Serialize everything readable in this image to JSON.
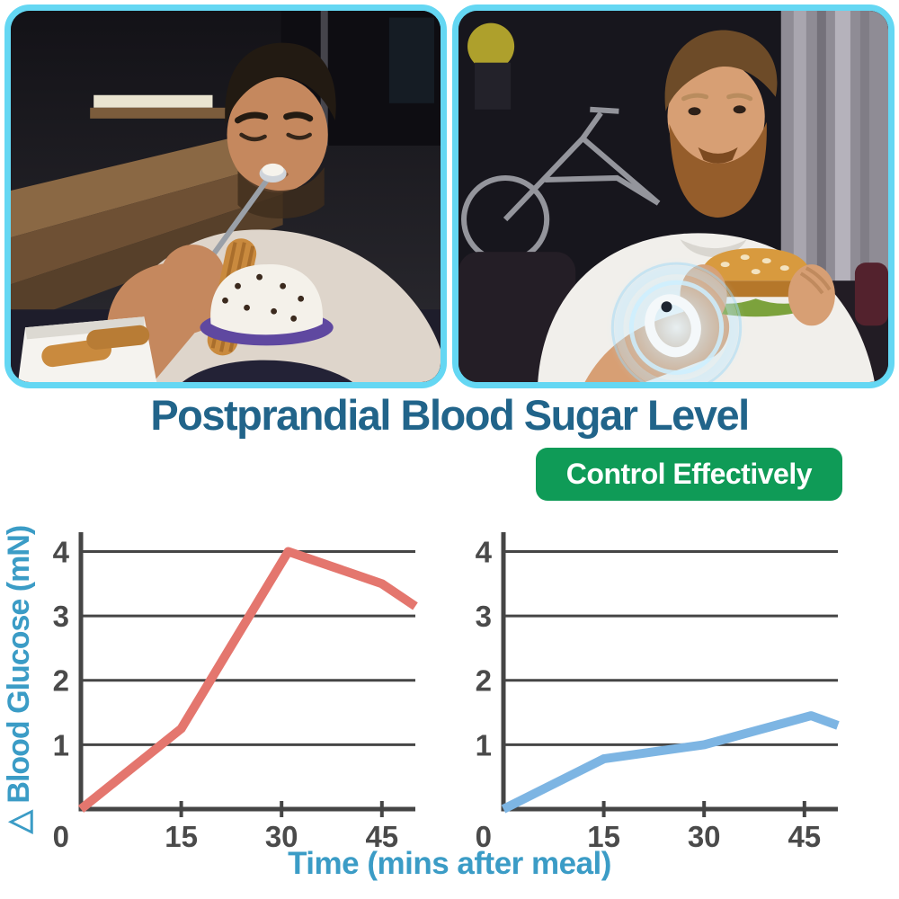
{
  "page": {
    "title": "Postprandial Blood Sugar Level",
    "badge_label": "Control Effectively",
    "colors": {
      "photo_border": "#64d7f3",
      "title": "#21648a",
      "badge_bg": "#0f9b57",
      "badge_text": "#ffffff",
      "axis": "#454545",
      "tick_label": "#4a4a4a",
      "axis_label": "#3b9cc6"
    },
    "photos": {
      "left": {
        "name": "man-overeating-desserts-photo"
      },
      "right": {
        "name": "man-eating-burger-wearing-glowing-smart-ring-photo"
      }
    }
  },
  "chart_data": [
    {
      "type": "line",
      "position": "left",
      "xlabel": "Time (mins after meal)",
      "ylabel": "△ Blood Glucose (mN)",
      "xlim": [
        0,
        50
      ],
      "ylim": [
        0,
        4.3
      ],
      "x_ticks": [
        15,
        30,
        45
      ],
      "y_ticks": [
        0,
        1,
        2,
        3,
        4
      ],
      "grid": "horizontal-only",
      "legend": "none",
      "series": [
        {
          "color": "#e4766e",
          "points": [
            [
              0,
              0
            ],
            [
              15,
              1.25
            ],
            [
              31,
              4.0
            ],
            [
              45,
              3.5
            ],
            [
              50,
              3.15
            ]
          ]
        }
      ]
    },
    {
      "type": "line",
      "position": "right",
      "xlabel": "Time (mins after meal)",
      "ylabel": "△ Blood Glucose (mN)",
      "xlim": [
        0,
        50
      ],
      "ylim": [
        0,
        4.3
      ],
      "x_ticks": [
        15,
        30,
        45
      ],
      "y_ticks": [
        0,
        1,
        2,
        3,
        4
      ],
      "grid": "horizontal-only",
      "legend": "none",
      "series": [
        {
          "color": "#7db5e3",
          "points": [
            [
              0,
              0
            ],
            [
              15,
              0.78
            ],
            [
              30,
              1.0
            ],
            [
              46,
              1.45
            ],
            [
              50,
              1.3
            ]
          ]
        }
      ]
    }
  ]
}
